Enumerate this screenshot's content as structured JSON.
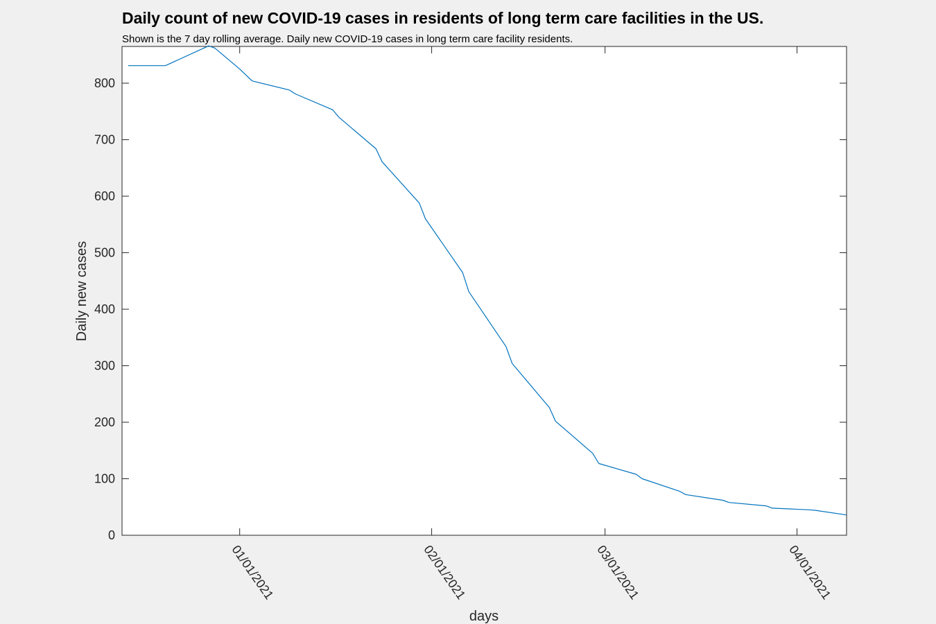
{
  "chart_data": {
    "type": "line",
    "title": "Daily count of new COVID-19 cases in residents of long term care facilities in the US.",
    "subtitle": "Shown is the 7 day rolling average. Daily new COVID-19 cases in long term care facility residents.",
    "xlabel": "days",
    "ylabel": "Daily new cases",
    "xlim": [
      "2020-12-13",
      "2021-04-09"
    ],
    "ylim": [
      0,
      865
    ],
    "yticks": [
      0,
      100,
      200,
      300,
      400,
      500,
      600,
      700,
      800
    ],
    "xticks": [
      {
        "date": "2021-01-01",
        "label": "01/01/2021"
      },
      {
        "date": "2021-02-01",
        "label": "02/01/2021"
      },
      {
        "date": "2021-03-01",
        "label": "03/01/2021"
      },
      {
        "date": "2021-04-01",
        "label": "04/01/2021"
      }
    ],
    "grid": false,
    "line_color": "#0072bd",
    "series": [
      {
        "x": [
          "2020-12-14",
          "2020-12-20",
          "2020-12-27",
          "2020-12-28",
          "2021-01-01",
          "2021-01-03",
          "2021-01-09",
          "2021-01-10",
          "2021-01-16",
          "2021-01-17",
          "2021-01-23",
          "2021-01-24",
          "2021-01-30",
          "2021-01-31",
          "2021-02-06",
          "2021-02-07",
          "2021-02-13",
          "2021-02-14",
          "2021-02-20",
          "2021-02-21",
          "2021-02-27",
          "2021-02-28",
          "2021-03-06",
          "2021-03-07",
          "2021-03-13",
          "2021-03-14",
          "2021-03-20",
          "2021-03-21",
          "2021-03-27",
          "2021-03-28",
          "2021-04-03",
          "2021-04-04",
          "2021-04-09"
        ],
        "y": [
          831,
          831,
          866,
          862,
          825,
          804,
          788,
          781,
          753,
          740,
          684,
          661,
          588,
          560,
          465,
          431,
          334,
          304,
          226,
          202,
          145,
          127,
          108,
          100,
          78,
          72,
          62,
          58,
          52,
          48,
          45,
          44,
          36
        ]
      }
    ]
  }
}
